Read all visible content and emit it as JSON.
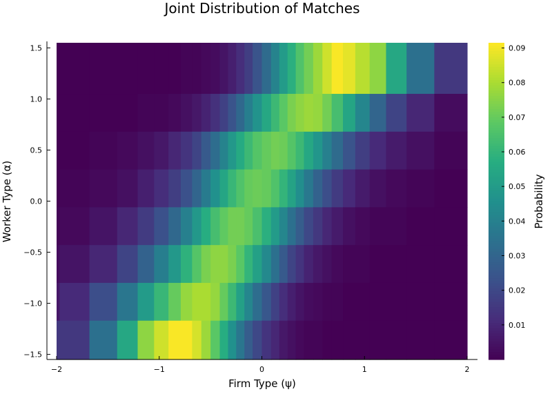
{
  "chart_data": {
    "type": "heatmap",
    "title": "Joint Distribution of Matches",
    "xlabel": "Firm Type (ψ)",
    "ylabel": "Worker Type (α)",
    "colorbar_label": "Probability",
    "colormap": "viridis",
    "xlim": [
      -2.0,
      2.0
    ],
    "ylim": [
      -1.55,
      1.55
    ],
    "x_ticks": [
      -2,
      -1,
      0,
      1,
      2
    ],
    "x_tick_labels": [
      "−2",
      "−1",
      "0",
      "1",
      "2"
    ],
    "y_ticks": [
      -1.5,
      -1.0,
      -0.5,
      0.0,
      0.5,
      1.0,
      1.5
    ],
    "y_tick_labels": [
      "−1.5",
      "−1.0",
      "−0.5",
      "0.0",
      "0.5",
      "1.0",
      "1.5"
    ],
    "colorbar_range": [
      0.0,
      0.0915
    ],
    "colorbar_ticks": [
      0.01,
      0.02,
      0.03,
      0.04,
      0.05,
      0.06,
      0.07,
      0.08,
      0.09
    ],
    "colorbar_tick_labels": [
      "0.01",
      "0.02",
      "0.03",
      "0.04",
      "0.05",
      "0.06",
      "0.07",
      "0.08",
      "0.09"
    ],
    "x_edges": [
      -2.0,
      -1.97,
      -1.68,
      -1.41,
      -1.21,
      -1.05,
      -0.91,
      -0.79,
      -0.68,
      -0.59,
      -0.5,
      -0.41,
      -0.33,
      -0.25,
      -0.17,
      -0.09,
      0.0,
      0.09,
      0.17,
      0.25,
      0.33,
      0.41,
      0.5,
      0.59,
      0.68,
      0.79,
      0.91,
      1.05,
      1.21,
      1.41,
      1.68,
      1.97,
      2.0
    ],
    "y_edges": [
      -1.55,
      -1.17,
      -0.8,
      -0.43,
      -0.06,
      0.31,
      0.68,
      1.05,
      1.55
    ],
    "grid_rows": [
      "1.25",
      "0.87",
      "0.50",
      "0.13",
      "-0.25",
      "-0.62",
      "-0.99",
      "-1.36"
    ],
    "values": [
      [
        0.0,
        0.0,
        0.0,
        0.0,
        0.0,
        0.0,
        0.0,
        0.001,
        0.001,
        0.002,
        0.003,
        0.005,
        0.008,
        0.012,
        0.017,
        0.024,
        0.032,
        0.041,
        0.05,
        0.058,
        0.066,
        0.072,
        0.078,
        0.085,
        0.091,
        0.088,
        0.082,
        0.076,
        0.055,
        0.034,
        0.015,
        0.015
      ],
      [
        0.0,
        0.0,
        0.0,
        0.0,
        0.001,
        0.001,
        0.002,
        0.004,
        0.006,
        0.009,
        0.013,
        0.018,
        0.024,
        0.031,
        0.039,
        0.047,
        0.055,
        0.062,
        0.068,
        0.073,
        0.076,
        0.078,
        0.077,
        0.072,
        0.064,
        0.054,
        0.042,
        0.03,
        0.019,
        0.01,
        0.003,
        0.003
      ],
      [
        0.0,
        0.0,
        0.001,
        0.002,
        0.004,
        0.006,
        0.01,
        0.014,
        0.019,
        0.026,
        0.033,
        0.041,
        0.049,
        0.056,
        0.062,
        0.067,
        0.07,
        0.072,
        0.071,
        0.067,
        0.062,
        0.055,
        0.048,
        0.04,
        0.032,
        0.024,
        0.017,
        0.011,
        0.007,
        0.004,
        0.001,
        0.001
      ],
      [
        0.0,
        0.001,
        0.002,
        0.004,
        0.008,
        0.012,
        0.017,
        0.023,
        0.03,
        0.038,
        0.046,
        0.054,
        0.061,
        0.066,
        0.07,
        0.071,
        0.07,
        0.066,
        0.06,
        0.053,
        0.045,
        0.037,
        0.029,
        0.022,
        0.016,
        0.011,
        0.007,
        0.004,
        0.002,
        0.001,
        0.0,
        0.0
      ],
      [
        0.001,
        0.002,
        0.005,
        0.01,
        0.016,
        0.023,
        0.031,
        0.04,
        0.049,
        0.057,
        0.064,
        0.069,
        0.072,
        0.072,
        0.07,
        0.065,
        0.058,
        0.05,
        0.042,
        0.034,
        0.027,
        0.02,
        0.015,
        0.01,
        0.007,
        0.004,
        0.002,
        0.001,
        0.001,
        0.0,
        0.0,
        0.0
      ],
      [
        0.003,
        0.005,
        0.01,
        0.019,
        0.029,
        0.039,
        0.049,
        0.059,
        0.067,
        0.073,
        0.076,
        0.076,
        0.073,
        0.068,
        0.06,
        0.052,
        0.043,
        0.034,
        0.026,
        0.019,
        0.014,
        0.009,
        0.006,
        0.004,
        0.002,
        0.001,
        0.001,
        0.0,
        0.0,
        0.0,
        0.0,
        0.0
      ],
      [
        0.006,
        0.011,
        0.022,
        0.036,
        0.05,
        0.061,
        0.07,
        0.077,
        0.08,
        0.08,
        0.077,
        0.07,
        0.062,
        0.052,
        0.042,
        0.033,
        0.025,
        0.018,
        0.012,
        0.008,
        0.005,
        0.003,
        0.002,
        0.001,
        0.001,
        0.0,
        0.0,
        0.0,
        0.0,
        0.0,
        0.0,
        0.0
      ],
      [
        0.015,
        0.015,
        0.034,
        0.055,
        0.076,
        0.085,
        0.091,
        0.091,
        0.086,
        0.078,
        0.068,
        0.057,
        0.046,
        0.036,
        0.027,
        0.02,
        0.014,
        0.01,
        0.006,
        0.004,
        0.002,
        0.001,
        0.001,
        0.0,
        0.0,
        0.0,
        0.0,
        0.0,
        0.0,
        0.0,
        0.0,
        0.0
      ]
    ]
  }
}
